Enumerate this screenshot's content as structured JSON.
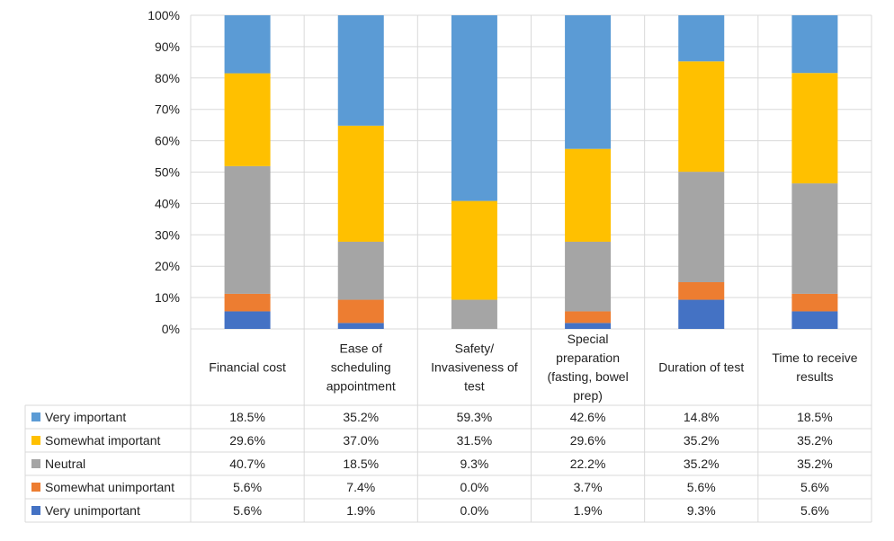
{
  "chart_data": {
    "type": "bar",
    "stacked": true,
    "percent_stacked": true,
    "categories": [
      "Financial cost",
      "Ease of scheduling appointment",
      "Safety/ Invasiveness of test",
      "Special preparation (fasting, bowel prep)",
      "Duration of test",
      "Time to receive results"
    ],
    "category_lines": [
      [
        "Financial cost"
      ],
      [
        "Ease of",
        "scheduling",
        "appointment"
      ],
      [
        "Safety/",
        "Invasiveness of",
        "test"
      ],
      [
        "Special",
        "preparation",
        "(fasting, bowel",
        "prep)"
      ],
      [
        "Duration of test"
      ],
      [
        "Time to receive",
        "results"
      ]
    ],
    "y_ticks": [
      "0%",
      "10%",
      "20%",
      "30%",
      "40%",
      "50%",
      "60%",
      "70%",
      "80%",
      "90%",
      "100%"
    ],
    "ylim": [
      0,
      100
    ],
    "grid": true,
    "legend": "data-table",
    "series": [
      {
        "name": "Very important",
        "color": "#5B9BD5",
        "values": [
          18.5,
          35.2,
          59.3,
          42.6,
          14.8,
          18.5
        ],
        "labels": [
          "18.5%",
          "35.2%",
          "59.3%",
          "42.6%",
          "14.8%",
          "18.5%"
        ]
      },
      {
        "name": "Somewhat important",
        "color": "#FFC000",
        "values": [
          29.6,
          37.0,
          31.5,
          29.6,
          35.2,
          35.2
        ],
        "labels": [
          "29.6%",
          "37.0%",
          "31.5%",
          "29.6%",
          "35.2%",
          "35.2%"
        ]
      },
      {
        "name": "Neutral",
        "color": "#A5A5A5",
        "values": [
          40.7,
          18.5,
          9.3,
          22.2,
          35.2,
          35.2
        ],
        "labels": [
          "40.7%",
          "18.5%",
          "9.3%",
          "22.2%",
          "35.2%",
          "35.2%"
        ]
      },
      {
        "name": "Somewhat unimportant",
        "color": "#ED7D31",
        "values": [
          5.6,
          7.4,
          0.0,
          3.7,
          5.6,
          5.6
        ],
        "labels": [
          "5.6%",
          "7.4%",
          "0.0%",
          "3.7%",
          "5.6%",
          "5.6%"
        ]
      },
      {
        "name": "Very unimportant",
        "color": "#4472C4",
        "values": [
          5.6,
          1.9,
          0.0,
          1.9,
          9.3,
          5.6
        ],
        "labels": [
          "5.6%",
          "1.9%",
          "0.0%",
          "1.9%",
          "9.3%",
          "5.6%"
        ]
      }
    ]
  }
}
